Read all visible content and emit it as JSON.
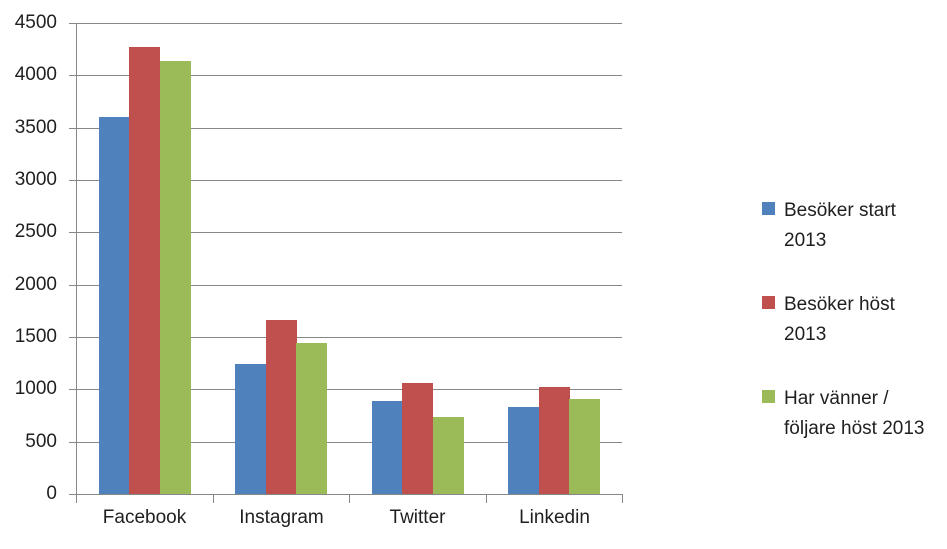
{
  "chart_data": {
    "type": "bar",
    "title": "",
    "xlabel": "",
    "ylabel": "",
    "categories": [
      "Facebook",
      "Instagram",
      "Twitter",
      "Linkedin"
    ],
    "series": [
      {
        "name": "Besöker start 2013",
        "color": "#4F81BD",
        "values": [
          3600,
          1240,
          890,
          830
        ]
      },
      {
        "name": "Besöker höst 2013",
        "color": "#C0504D",
        "values": [
          4270,
          1660,
          1060,
          1020
        ]
      },
      {
        "name": "Har vänner / följare höst 2013",
        "color": "#9BBB59",
        "values": [
          4140,
          1440,
          740,
          910
        ]
      }
    ],
    "ylim": [
      0,
      4500
    ],
    "ytick_step": 500,
    "ytick_labels": [
      "0",
      "500",
      "1000",
      "1500",
      "2000",
      "2500",
      "3000",
      "3500",
      "4000",
      "4500"
    ],
    "grid": true,
    "legend": {
      "position": "right",
      "entries": [
        {
          "lines": [
            "Besöker start",
            "2013"
          ],
          "color": "#4F81BD"
        },
        {
          "lines": [
            "Besöker höst",
            "2013"
          ],
          "color": "#C0504D"
        },
        {
          "lines": [
            "Har vänner /",
            "följare höst 2013"
          ],
          "color": "#9BBB59"
        }
      ]
    }
  },
  "style": {
    "gridline_color": "#878787",
    "axis_color": "#878787",
    "text_color": "#1f1f1f",
    "background": "#ffffff"
  }
}
